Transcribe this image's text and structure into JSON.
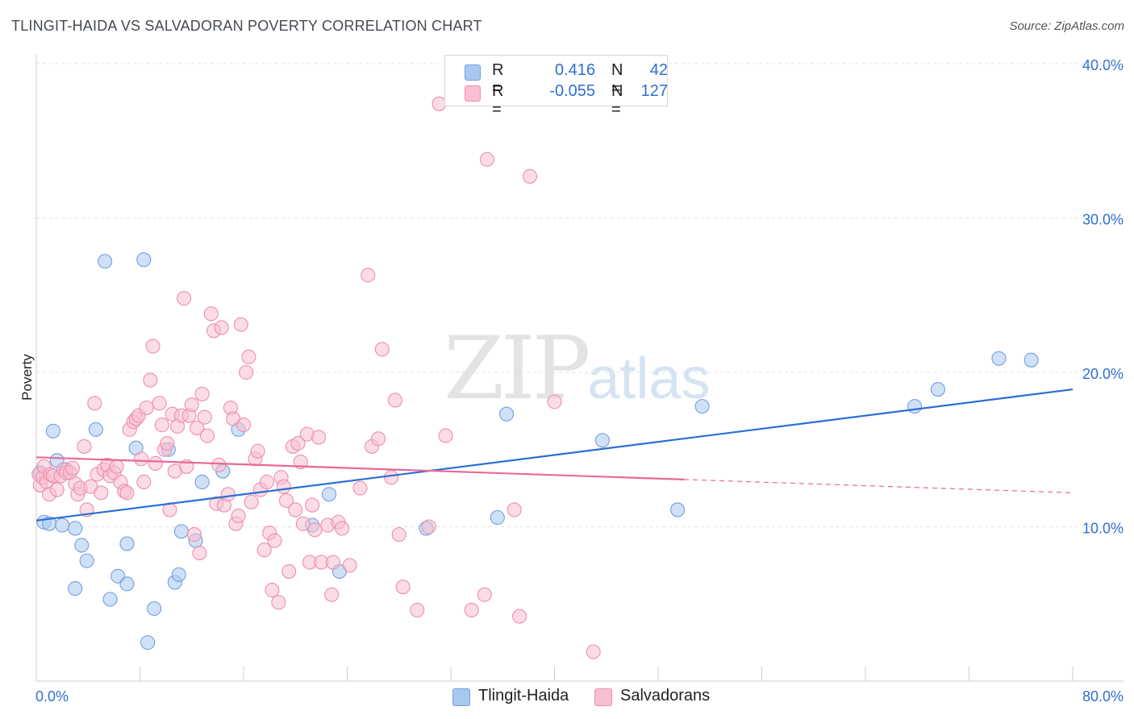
{
  "header": {
    "title": "TLINGIT-HAIDA VS SALVADORAN POVERTY CORRELATION CHART",
    "source": "Source: ZipAtlas.com"
  },
  "watermark": {
    "zip": "ZIP",
    "atlas": "atlas"
  },
  "legend": {
    "rows": [
      {
        "r_label": "R =",
        "r_value": "0.416",
        "n_label": "N =",
        "n_value": "42",
        "color": "#a9c8f0",
        "stroke": "#6f9fe0"
      },
      {
        "r_label": "R =",
        "r_value": "-0.055",
        "n_label": "N =",
        "n_value": "127",
        "color": "#f8bfd0",
        "stroke": "#ec8fad"
      }
    ]
  },
  "bottom_legend": [
    {
      "label": "Tlingit-Haida",
      "color": "#a9c8f0",
      "stroke": "#6f9fe0"
    },
    {
      "label": "Salvadorans",
      "color": "#f8bfd0",
      "stroke": "#ec8fad"
    }
  ],
  "chart_data": {
    "type": "scatter",
    "title": "TLINGIT-HAIDA VS SALVADORAN POVERTY CORRELATION CHART",
    "xlabel": "",
    "ylabel": "Poverty",
    "xlim": [
      0,
      80
    ],
    "ylim": [
      0,
      43
    ],
    "x_tick_labels": [
      "0.0%",
      "80.0%"
    ],
    "y_ticks": [
      10,
      20,
      30,
      40
    ],
    "y_tick_labels": [
      "10.0%",
      "20.0%",
      "30.0%",
      "40.0%"
    ],
    "grid": true,
    "legend_position": "top-center",
    "series": [
      {
        "name": "Tlingit-Haida",
        "color": "#6f9fe0",
        "fill": "#a9c8f0",
        "trend": {
          "x": [
            0,
            80
          ],
          "y": [
            10.4,
            18.9
          ],
          "color": "#2a6fd3",
          "dashed_after": null
        },
        "points": [
          [
            0.3,
            13.5
          ],
          [
            0.6,
            10.3
          ],
          [
            1.0,
            10.2
          ],
          [
            1.3,
            16.2
          ],
          [
            1.6,
            14.3
          ],
          [
            2.0,
            10.1
          ],
          [
            2.3,
            13.7
          ],
          [
            3.0,
            9.9
          ],
          [
            3.5,
            8.8
          ],
          [
            3.9,
            7.8
          ],
          [
            4.6,
            16.3
          ],
          [
            3.0,
            6.0
          ],
          [
            5.3,
            27.2
          ],
          [
            5.7,
            5.3
          ],
          [
            6.3,
            6.8
          ],
          [
            7.0,
            8.9
          ],
          [
            7.0,
            6.3
          ],
          [
            7.7,
            15.1
          ],
          [
            8.3,
            27.3
          ],
          [
            8.6,
            2.5
          ],
          [
            9.1,
            4.7
          ],
          [
            10.2,
            15.0
          ],
          [
            10.7,
            6.4
          ],
          [
            11.0,
            6.9
          ],
          [
            11.2,
            9.7
          ],
          [
            12.3,
            9.1
          ],
          [
            12.8,
            12.9
          ],
          [
            14.4,
            13.6
          ],
          [
            15.6,
            16.3
          ],
          [
            21.3,
            10.1
          ],
          [
            22.6,
            12.1
          ],
          [
            23.4,
            7.1
          ],
          [
            30.1,
            9.9
          ],
          [
            35.6,
            10.6
          ],
          [
            36.3,
            17.3
          ],
          [
            43.7,
            15.6
          ],
          [
            49.5,
            11.1
          ],
          [
            51.4,
            17.8
          ],
          [
            67.8,
            17.8
          ],
          [
            69.6,
            18.9
          ],
          [
            74.3,
            20.9
          ],
          [
            76.8,
            20.8
          ]
        ]
      },
      {
        "name": "Salvadorans",
        "color": "#ec8fad",
        "fill": "#f8bfd0",
        "trend": {
          "x": [
            0,
            80
          ],
          "y": [
            14.5,
            12.2
          ],
          "color": "#e8689a",
          "solid_until_x": 50
        },
        "points": [
          [
            0.2,
            13.4
          ],
          [
            0.3,
            12.7
          ],
          [
            0.5,
            13.2
          ],
          [
            0.6,
            13.9
          ],
          [
            0.8,
            12.9
          ],
          [
            1.0,
            12.1
          ],
          [
            1.1,
            13.4
          ],
          [
            1.3,
            13.3
          ],
          [
            1.6,
            12.4
          ],
          [
            1.9,
            13.3
          ],
          [
            2.1,
            13.7
          ],
          [
            2.3,
            13.5
          ],
          [
            2.6,
            13.5
          ],
          [
            2.8,
            13.8
          ],
          [
            3.0,
            12.8
          ],
          [
            3.2,
            12.1
          ],
          [
            3.4,
            12.5
          ],
          [
            3.7,
            15.2
          ],
          [
            3.9,
            11.1
          ],
          [
            4.2,
            12.6
          ],
          [
            4.5,
            18.0
          ],
          [
            4.7,
            13.4
          ],
          [
            5.0,
            12.2
          ],
          [
            5.2,
            13.7
          ],
          [
            5.5,
            14.0
          ],
          [
            5.7,
            13.3
          ],
          [
            6.0,
            13.5
          ],
          [
            6.2,
            13.9
          ],
          [
            6.5,
            12.9
          ],
          [
            6.8,
            12.3
          ],
          [
            7.0,
            12.2
          ],
          [
            7.2,
            16.3
          ],
          [
            7.5,
            16.8
          ],
          [
            7.7,
            17.0
          ],
          [
            7.9,
            17.2
          ],
          [
            8.1,
            14.4
          ],
          [
            8.3,
            12.9
          ],
          [
            8.5,
            17.7
          ],
          [
            8.8,
            19.5
          ],
          [
            9.0,
            21.7
          ],
          [
            9.2,
            14.1
          ],
          [
            9.5,
            18.0
          ],
          [
            9.7,
            16.6
          ],
          [
            9.9,
            15.0
          ],
          [
            10.1,
            15.4
          ],
          [
            10.3,
            11.1
          ],
          [
            10.5,
            17.3
          ],
          [
            10.7,
            13.6
          ],
          [
            10.9,
            16.5
          ],
          [
            11.2,
            17.2
          ],
          [
            11.4,
            24.8
          ],
          [
            11.6,
            13.9
          ],
          [
            11.8,
            17.2
          ],
          [
            12.0,
            17.9
          ],
          [
            12.2,
            9.5
          ],
          [
            12.4,
            16.4
          ],
          [
            12.6,
            8.3
          ],
          [
            12.8,
            18.6
          ],
          [
            13.0,
            17.1
          ],
          [
            13.2,
            15.9
          ],
          [
            13.5,
            23.8
          ],
          [
            13.7,
            22.7
          ],
          [
            13.9,
            11.5
          ],
          [
            14.1,
            14.0
          ],
          [
            14.3,
            22.9
          ],
          [
            14.5,
            11.4
          ],
          [
            14.8,
            12.1
          ],
          [
            15.0,
            17.7
          ],
          [
            15.2,
            17.0
          ],
          [
            15.4,
            10.2
          ],
          [
            15.6,
            10.7
          ],
          [
            15.8,
            23.1
          ],
          [
            16.0,
            16.6
          ],
          [
            16.2,
            20.0
          ],
          [
            16.4,
            21.0
          ],
          [
            16.6,
            11.6
          ],
          [
            16.9,
            14.4
          ],
          [
            17.1,
            14.9
          ],
          [
            17.3,
            12.4
          ],
          [
            17.6,
            8.5
          ],
          [
            17.8,
            12.9
          ],
          [
            18.0,
            9.6
          ],
          [
            18.2,
            5.9
          ],
          [
            18.4,
            9.1
          ],
          [
            18.7,
            5.1
          ],
          [
            18.9,
            13.2
          ],
          [
            19.1,
            12.6
          ],
          [
            19.3,
            11.7
          ],
          [
            19.5,
            7.1
          ],
          [
            19.8,
            15.2
          ],
          [
            20.0,
            11.1
          ],
          [
            20.2,
            15.4
          ],
          [
            20.4,
            14.2
          ],
          [
            20.6,
            10.2
          ],
          [
            20.9,
            16.0
          ],
          [
            21.1,
            7.7
          ],
          [
            21.3,
            11.4
          ],
          [
            21.5,
            9.8
          ],
          [
            21.8,
            15.8
          ],
          [
            22.0,
            7.7
          ],
          [
            22.5,
            10.1
          ],
          [
            22.9,
            7.7
          ],
          [
            23.3,
            10.3
          ],
          [
            23.6,
            9.9
          ],
          [
            24.2,
            7.5
          ],
          [
            25.0,
            12.5
          ],
          [
            25.6,
            26.3
          ],
          [
            25.9,
            15.2
          ],
          [
            26.4,
            15.7
          ],
          [
            26.7,
            21.5
          ],
          [
            27.4,
            13.2
          ],
          [
            27.7,
            18.2
          ],
          [
            28.0,
            9.5
          ],
          [
            28.3,
            6.1
          ],
          [
            29.4,
            4.6
          ],
          [
            30.3,
            10.0
          ],
          [
            31.1,
            37.4
          ],
          [
            31.6,
            15.9
          ],
          [
            33.6,
            4.6
          ],
          [
            34.6,
            5.6
          ],
          [
            34.8,
            33.8
          ],
          [
            36.9,
            11.1
          ],
          [
            37.3,
            4.2
          ],
          [
            38.1,
            32.7
          ],
          [
            40.0,
            18.1
          ],
          [
            43.0,
            1.9
          ],
          [
            22.8,
            5.6
          ]
        ]
      }
    ]
  }
}
